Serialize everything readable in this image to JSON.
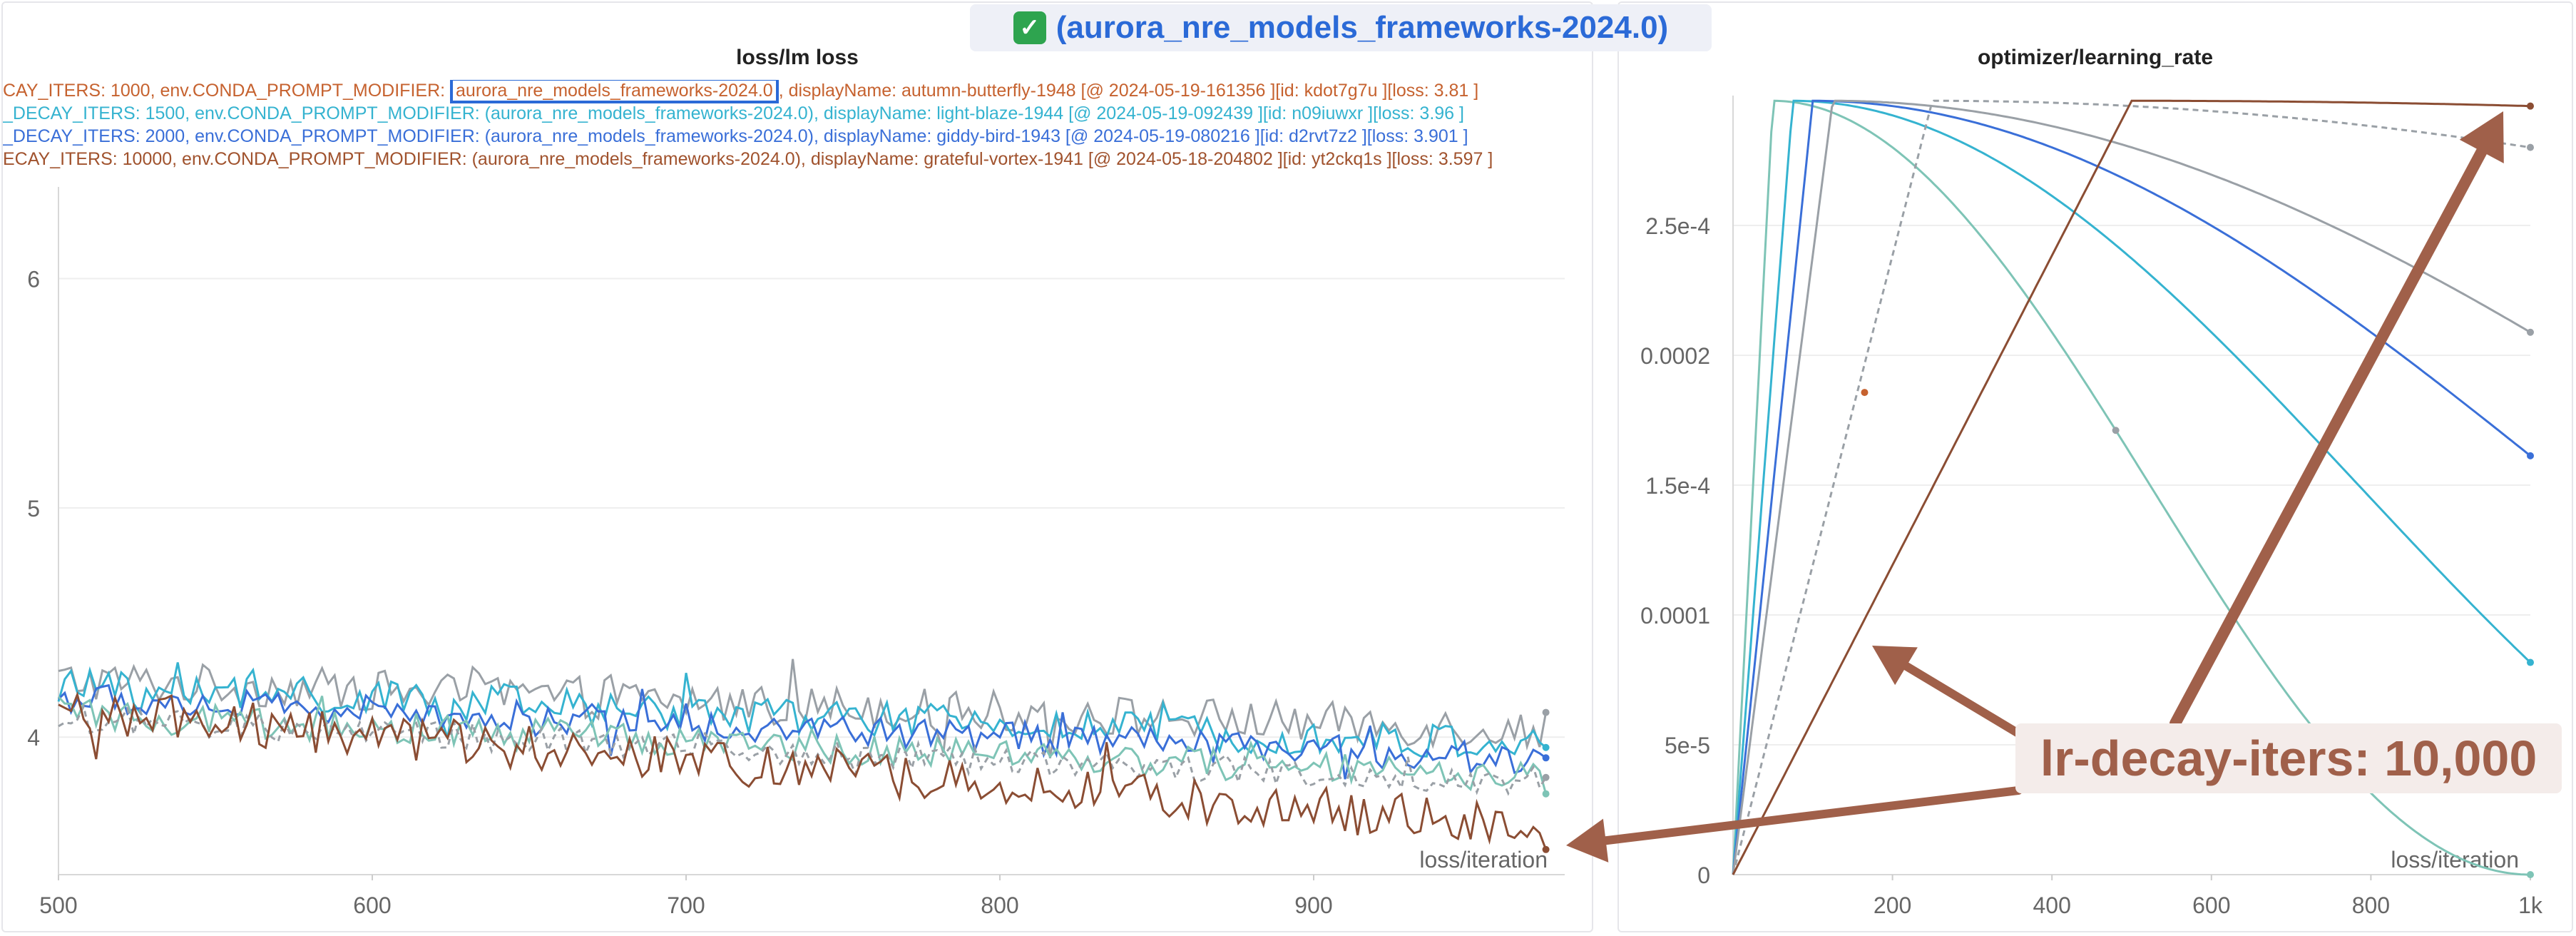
{
  "header": {
    "check_icon": "check-mark-icon",
    "title": "(aurora_nre_models_frameworks-2024.0)"
  },
  "colors": {
    "orange": "#c6622f",
    "cyan": "#35b3d0",
    "blue": "#3a6fd8",
    "brown": "#8b4d33",
    "teal": "#7ec4b6",
    "gray": "#9aa0a6",
    "accent": "#2b6ad7",
    "callout": "#a0604a"
  },
  "legend": [
    {
      "color": "#c6622f",
      "pre": "CAY_ITERS: 1000, env.CONDA_PROMPT_MODIFIER: ",
      "highlight": "aurora_nre_models_frameworks-2024.0",
      "post": ", displayName: autumn-butterfly-1948 [@ 2024-05-19-161356 ][id: kdot7g7u ][loss: 3.81 ]"
    },
    {
      "color": "#35b3d0",
      "pre": "_DECAY_ITERS: 1500, env.CONDA_PROMPT_MODIFIER: (aurora_nre_models_frameworks-2024.0), displayName: light-blaze-1944 [@ 2024-05-19-092439 ][id: n09iuwxr ][loss: 3.96 ]",
      "highlight": "",
      "post": ""
    },
    {
      "color": "#3a6fd8",
      "pre": "_DECAY_ITERS: 2000, env.CONDA_PROMPT_MODIFIER: (aurora_nre_models_frameworks-2024.0), displayName: giddy-bird-1943 [@ 2024-05-19-080216 ][id: d2rvt7z2 ][loss: 3.901 ]",
      "highlight": "",
      "post": ""
    },
    {
      "color": "#a0522d",
      "pre": "ECAY_ITERS: 10000, env.CONDA_PROMPT_MODIFIER: (aurora_nre_models_frameworks-2024.0), displayName: grateful-vortex-1941 [@ 2024-05-18-204802 ][id: yt2ckq1s ][loss: 3.597 ]",
      "highlight": "",
      "post": ""
    }
  ],
  "callout": {
    "text": "lr-decay-iters: 10,000"
  },
  "chart_data": [
    {
      "type": "line",
      "title": "loss/lm loss",
      "xlabel": "loss/iteration",
      "ylabel": "",
      "xlim": [
        500,
        980
      ],
      "ylim": [
        3.4,
        6.4
      ],
      "x_ticks": [
        500,
        600,
        700,
        800,
        900
      ],
      "y_ticks": [
        4,
        5,
        6
      ],
      "x_tick_labels": [
        "500",
        "600",
        "700",
        "800",
        "900"
      ],
      "y_tick_labels": [
        "4",
        "5",
        "6"
      ],
      "series": [
        {
          "name": "gray run",
          "color": "#9aa0a6",
          "dashed": false,
          "start": 4.25,
          "end": 4.03,
          "amp": 0.09
        },
        {
          "name": "light-blaze-1944",
          "color": "#35b3d0",
          "dashed": false,
          "start": 4.22,
          "end": 3.96,
          "amp": 0.08
        },
        {
          "name": "giddy-bird-1943",
          "color": "#3a6fd8",
          "dashed": false,
          "start": 4.17,
          "end": 3.9,
          "amp": 0.07
        },
        {
          "name": "teal run",
          "color": "#7ec4b6",
          "dashed": false,
          "start": 4.1,
          "end": 3.82,
          "amp": 0.07
        },
        {
          "name": "gray dashed run",
          "color": "#9aa0a6",
          "dashed": true,
          "start": 4.08,
          "end": 3.8,
          "amp": 0.06
        },
        {
          "name": "grateful-vortex-1941",
          "color": "#8b4d33",
          "dashed": false,
          "start": 4.12,
          "end": 3.6,
          "amp": 0.1
        }
      ]
    },
    {
      "type": "line",
      "title": "optimizer/learning_rate",
      "xlabel": "loss/iteration",
      "ylabel": "",
      "xlim": [
        0,
        1000
      ],
      "ylim": [
        0,
        0.0003
      ],
      "x_ticks": [
        200,
        400,
        600,
        800,
        1000
      ],
      "y_ticks": [
        0,
        5e-05,
        0.0001,
        0.00015,
        0.0002,
        0.00025
      ],
      "x_tick_labels": [
        "200",
        "400",
        "600",
        "800",
        "1k"
      ],
      "y_tick_labels": [
        "0",
        "5e-5",
        "0.0001",
        "1.5e-4",
        "0.0002",
        "2.5e-4"
      ],
      "lr_max": 0.000298,
      "series": [
        {
          "name": "teal run",
          "color": "#7ec4b6",
          "dashed": false,
          "warmup": 50,
          "decay_iters": 1000
        },
        {
          "name": "light-blaze-1944",
          "color": "#35b3d0",
          "dashed": false,
          "warmup": 75,
          "decay_iters": 1500
        },
        {
          "name": "giddy-bird-1943",
          "color": "#3a6fd8",
          "dashed": false,
          "warmup": 100,
          "decay_iters": 2000
        },
        {
          "name": "gray run",
          "color": "#9aa0a6",
          "dashed": false,
          "warmup": 125,
          "decay_iters": 2500
        },
        {
          "name": "gray dashed run",
          "color": "#9aa0a6",
          "dashed": true,
          "warmup": 250,
          "decay_iters": 5000
        },
        {
          "name": "grateful-vortex-1941",
          "color": "#8b4d33",
          "dashed": false,
          "warmup": 500,
          "decay_iters": 10000
        }
      ]
    }
  ]
}
